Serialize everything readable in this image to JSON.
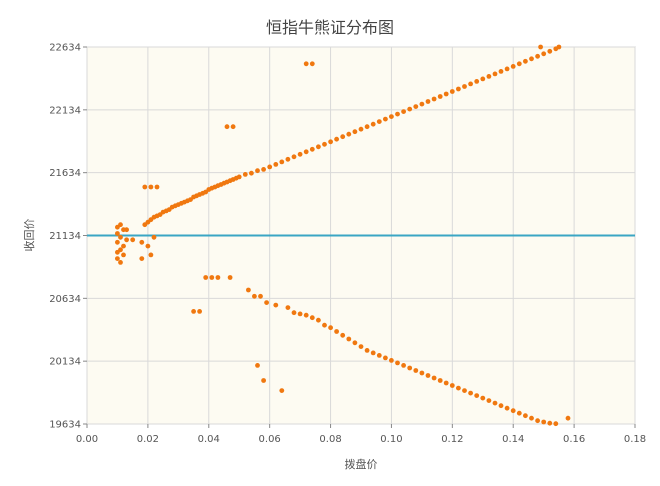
{
  "chart_data": {
    "type": "scatter",
    "title": "恒指牛熊证分布图",
    "xlabel": "拨盘价",
    "ylabel": "收回价",
    "xlim": [
      0,
      0.18
    ],
    "ylim": [
      19634,
      22634
    ],
    "x_ticks": [
      "0.00",
      "0.02",
      "0.04",
      "0.06",
      "0.08",
      "0.10",
      "0.12",
      "0.14",
      "0.16",
      "0.18"
    ],
    "y_ticks": [
      "19634",
      "20134",
      "20634",
      "21134",
      "21634",
      "22134",
      "22634"
    ],
    "grid": true,
    "reference_line": {
      "y": 21134,
      "color": "#3aa6c4"
    },
    "colors": {
      "points": "#f07810",
      "plot_background": "#fdfbf2",
      "grid": "#d9d9d9"
    },
    "series": [
      {
        "name": "",
        "points": [
          [
            0.01,
            21200
          ],
          [
            0.011,
            21220
          ],
          [
            0.012,
            21180
          ],
          [
            0.01,
            21150
          ],
          [
            0.011,
            21120
          ],
          [
            0.01,
            21080
          ],
          [
            0.012,
            21050
          ],
          [
            0.011,
            21020
          ],
          [
            0.01,
            21000
          ],
          [
            0.012,
            20980
          ],
          [
            0.01,
            20950
          ],
          [
            0.011,
            20920
          ],
          [
            0.013,
            21100
          ],
          [
            0.013,
            21180
          ],
          [
            0.015,
            21100
          ],
          [
            0.018,
            20950
          ],
          [
            0.018,
            21080
          ],
          [
            0.02,
            21050
          ],
          [
            0.022,
            21120
          ],
          [
            0.021,
            20980
          ],
          [
            0.019,
            21220
          ],
          [
            0.02,
            21240
          ],
          [
            0.021,
            21260
          ],
          [
            0.022,
            21280
          ],
          [
            0.023,
            21290
          ],
          [
            0.024,
            21300
          ],
          [
            0.025,
            21320
          ],
          [
            0.026,
            21330
          ],
          [
            0.027,
            21340
          ],
          [
            0.028,
            21360
          ],
          [
            0.029,
            21370
          ],
          [
            0.03,
            21380
          ],
          [
            0.031,
            21390
          ],
          [
            0.032,
            21400
          ],
          [
            0.033,
            21410
          ],
          [
            0.034,
            21420
          ],
          [
            0.035,
            21440
          ],
          [
            0.036,
            21450
          ],
          [
            0.037,
            21460
          ],
          [
            0.038,
            21470
          ],
          [
            0.039,
            21480
          ],
          [
            0.04,
            21500
          ],
          [
            0.041,
            21510
          ],
          [
            0.042,
            21520
          ],
          [
            0.043,
            21530
          ],
          [
            0.044,
            21540
          ],
          [
            0.045,
            21550
          ],
          [
            0.046,
            21560
          ],
          [
            0.047,
            21570
          ],
          [
            0.048,
            21580
          ],
          [
            0.049,
            21590
          ],
          [
            0.05,
            21600
          ],
          [
            0.052,
            21620
          ],
          [
            0.054,
            21630
          ],
          [
            0.056,
            21650
          ],
          [
            0.058,
            21660
          ],
          [
            0.06,
            21680
          ],
          [
            0.062,
            21700
          ],
          [
            0.064,
            21720
          ],
          [
            0.066,
            21740
          ],
          [
            0.068,
            21760
          ],
          [
            0.07,
            21780
          ],
          [
            0.072,
            21800
          ],
          [
            0.074,
            21820
          ],
          [
            0.076,
            21840
          ],
          [
            0.078,
            21860
          ],
          [
            0.08,
            21880
          ],
          [
            0.082,
            21900
          ],
          [
            0.084,
            21920
          ],
          [
            0.086,
            21940
          ],
          [
            0.088,
            21960
          ],
          [
            0.09,
            21980
          ],
          [
            0.092,
            22000
          ],
          [
            0.094,
            22020
          ],
          [
            0.096,
            22040
          ],
          [
            0.098,
            22060
          ],
          [
            0.1,
            22080
          ],
          [
            0.102,
            22100
          ],
          [
            0.104,
            22120
          ],
          [
            0.106,
            22140
          ],
          [
            0.108,
            22160
          ],
          [
            0.11,
            22180
          ],
          [
            0.112,
            22200
          ],
          [
            0.114,
            22220
          ],
          [
            0.116,
            22240
          ],
          [
            0.118,
            22260
          ],
          [
            0.12,
            22280
          ],
          [
            0.122,
            22300
          ],
          [
            0.124,
            22320
          ],
          [
            0.126,
            22340
          ],
          [
            0.128,
            22360
          ],
          [
            0.13,
            22380
          ],
          [
            0.132,
            22400
          ],
          [
            0.134,
            22420
          ],
          [
            0.136,
            22440
          ],
          [
            0.138,
            22460
          ],
          [
            0.14,
            22480
          ],
          [
            0.142,
            22500
          ],
          [
            0.144,
            22520
          ],
          [
            0.146,
            22540
          ],
          [
            0.148,
            22560
          ],
          [
            0.15,
            22580
          ],
          [
            0.152,
            22600
          ],
          [
            0.154,
            22620
          ],
          [
            0.149,
            22634
          ],
          [
            0.155,
            22634
          ],
          [
            0.019,
            21520
          ],
          [
            0.021,
            21520
          ],
          [
            0.023,
            21520
          ],
          [
            0.046,
            22000
          ],
          [
            0.048,
            22000
          ],
          [
            0.072,
            22500
          ],
          [
            0.074,
            22500
          ],
          [
            0.035,
            20530
          ],
          [
            0.037,
            20530
          ],
          [
            0.039,
            20800
          ],
          [
            0.041,
            20800
          ],
          [
            0.043,
            20800
          ],
          [
            0.047,
            20800
          ],
          [
            0.053,
            20700
          ],
          [
            0.055,
            20650
          ],
          [
            0.057,
            20650
          ],
          [
            0.059,
            20600
          ],
          [
            0.062,
            20580
          ],
          [
            0.066,
            20560
          ],
          [
            0.068,
            20520
          ],
          [
            0.07,
            20510
          ],
          [
            0.072,
            20500
          ],
          [
            0.074,
            20480
          ],
          [
            0.076,
            20460
          ],
          [
            0.078,
            20420
          ],
          [
            0.08,
            20400
          ],
          [
            0.082,
            20370
          ],
          [
            0.084,
            20340
          ],
          [
            0.086,
            20310
          ],
          [
            0.088,
            20280
          ],
          [
            0.09,
            20250
          ],
          [
            0.092,
            20220
          ],
          [
            0.094,
            20200
          ],
          [
            0.096,
            20180
          ],
          [
            0.098,
            20160
          ],
          [
            0.1,
            20140
          ],
          [
            0.102,
            20120
          ],
          [
            0.104,
            20100
          ],
          [
            0.106,
            20080
          ],
          [
            0.108,
            20060
          ],
          [
            0.11,
            20040
          ],
          [
            0.112,
            20020
          ],
          [
            0.114,
            20000
          ],
          [
            0.116,
            19980
          ],
          [
            0.118,
            19960
          ],
          [
            0.12,
            19940
          ],
          [
            0.122,
            19920
          ],
          [
            0.124,
            19900
          ],
          [
            0.126,
            19880
          ],
          [
            0.128,
            19860
          ],
          [
            0.13,
            19840
          ],
          [
            0.132,
            19820
          ],
          [
            0.134,
            19800
          ],
          [
            0.136,
            19780
          ],
          [
            0.138,
            19760
          ],
          [
            0.14,
            19740
          ],
          [
            0.142,
            19720
          ],
          [
            0.144,
            19700
          ],
          [
            0.146,
            19680
          ],
          [
            0.148,
            19660
          ],
          [
            0.15,
            19650
          ],
          [
            0.152,
            19640
          ],
          [
            0.154,
            19636
          ],
          [
            0.158,
            19680
          ],
          [
            0.056,
            20100
          ],
          [
            0.058,
            19980
          ],
          [
            0.064,
            19900
          ]
        ]
      }
    ]
  }
}
